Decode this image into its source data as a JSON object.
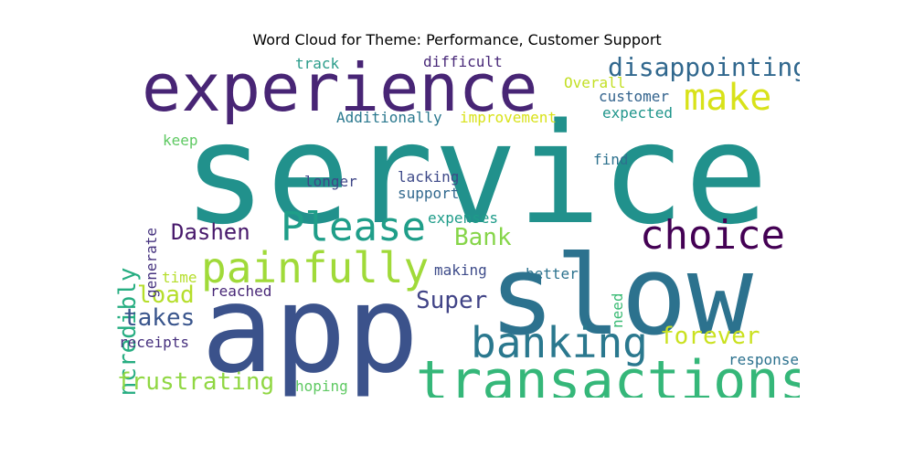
{
  "title": "Word Cloud for Theme: Performance, Customer Support",
  "words": [
    {
      "text": "service",
      "color": "#21918c"
    },
    {
      "text": "slow",
      "color": "#2c728e"
    },
    {
      "text": "app",
      "color": "#3b528b"
    },
    {
      "text": "experience",
      "color": "#482575"
    },
    {
      "text": "transactions",
      "color": "#35b779"
    },
    {
      "text": "banking",
      "color": "#2a788e"
    },
    {
      "text": "painfully",
      "color": "#a0da39"
    },
    {
      "text": "Please",
      "color": "#1f9e89"
    },
    {
      "text": "choice",
      "color": "#440154"
    },
    {
      "text": "make",
      "color": "#d8e219"
    },
    {
      "text": "disappointing",
      "color": "#31688e"
    },
    {
      "text": "incredibly",
      "color": "#26ad81"
    },
    {
      "text": "Dashen",
      "color": "#481a6c"
    },
    {
      "text": "frustrating",
      "color": "#90d743"
    },
    {
      "text": "forever",
      "color": "#cae11f"
    },
    {
      "text": "Super",
      "color": "#414487"
    },
    {
      "text": "takes",
      "color": "#39558c"
    },
    {
      "text": "Bank",
      "color": "#86d549"
    },
    {
      "text": "load",
      "color": "#b5de2b"
    },
    {
      "text": "customer",
      "color": "#33638d"
    },
    {
      "text": "expected",
      "color": "#1f958b"
    },
    {
      "text": "Additionally",
      "color": "#2a788e"
    },
    {
      "text": "improvement",
      "color": "#d8e219"
    },
    {
      "text": "Overall",
      "color": "#c2df23"
    },
    {
      "text": "difficult",
      "color": "#482878"
    },
    {
      "text": "track",
      "color": "#2a9c8a"
    },
    {
      "text": "keep",
      "color": "#5ec962"
    },
    {
      "text": "generate",
      "color": "#46337f"
    },
    {
      "text": "longer",
      "color": "#3f4788"
    },
    {
      "text": "lacking",
      "color": "#3e4a89"
    },
    {
      "text": "support",
      "color": "#31688e"
    },
    {
      "text": "find",
      "color": "#2d718e"
    },
    {
      "text": "expenses",
      "color": "#1e9c89"
    },
    {
      "text": "time",
      "color": "#b5de2b"
    },
    {
      "text": "reached",
      "color": "#482777"
    },
    {
      "text": "making",
      "color": "#3e4c8a"
    },
    {
      "text": "better",
      "color": "#2c728e"
    },
    {
      "text": "need",
      "color": "#3bbb75"
    },
    {
      "text": "receipts",
      "color": "#46307e"
    },
    {
      "text": "hoping",
      "color": "#5ec962"
    },
    {
      "text": "response",
      "color": "#2c718e"
    }
  ]
}
